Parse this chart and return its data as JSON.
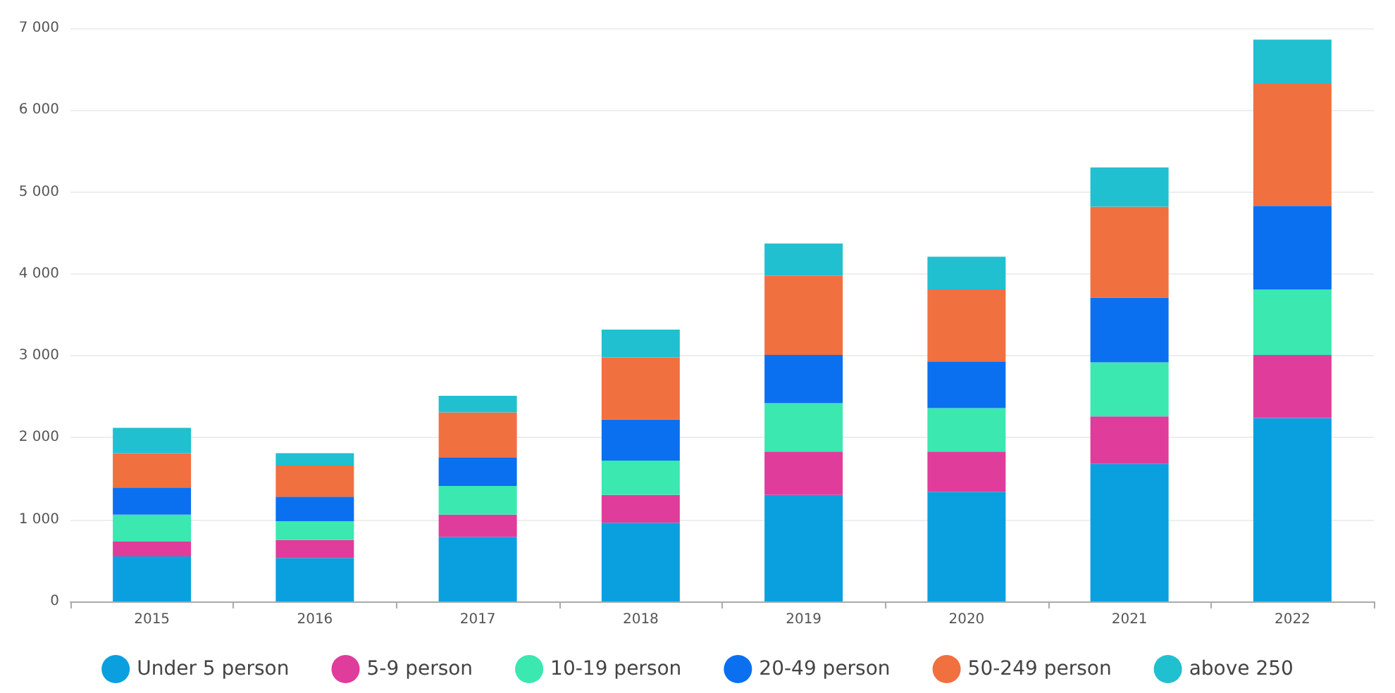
{
  "chart_data": {
    "type": "bar",
    "stacked": true,
    "categories": [
      "2015",
      "2016",
      "2017",
      "2018",
      "2019",
      "2020",
      "2021",
      "2022"
    ],
    "series": [
      {
        "name": "Under 5 person",
        "color": "#0aa0e0",
        "values": [
          550,
          530,
          790,
          960,
          1300,
          1340,
          1680,
          2240
        ]
      },
      {
        "name": "5-9 person",
        "color": "#e03c9c",
        "values": [
          180,
          220,
          270,
          340,
          530,
          490,
          580,
          770
        ]
      },
      {
        "name": "10-19 person",
        "color": "#3ae8b0",
        "values": [
          330,
          230,
          350,
          420,
          590,
          530,
          660,
          800
        ]
      },
      {
        "name": "20-49 person",
        "color": "#0a70f0",
        "values": [
          330,
          300,
          350,
          500,
          590,
          570,
          790,
          1020
        ]
      },
      {
        "name": "50-249 person",
        "color": "#f07040",
        "values": [
          420,
          380,
          550,
          760,
          970,
          880,
          1110,
          1500
        ]
      },
      {
        "name": "above 250",
        "color": "#20c0d0",
        "values": [
          310,
          150,
          200,
          340,
          390,
          400,
          480,
          530
        ]
      }
    ],
    "ylim": [
      0,
      7000
    ],
    "yticks": [
      0,
      {
        "value": 1000,
        "label": "1 000"
      },
      {
        "value": 2000,
        "label": "2 000"
      },
      {
        "value": 3000,
        "label": "3 000"
      },
      {
        "value": 4000,
        "label": "4 000"
      },
      {
        "value": 5000,
        "label": "5 000"
      },
      {
        "value": 6000,
        "label": "6 000"
      },
      {
        "value": 7000,
        "label": "7 000"
      }
    ],
    "grid": "y",
    "legend": "bottom"
  }
}
